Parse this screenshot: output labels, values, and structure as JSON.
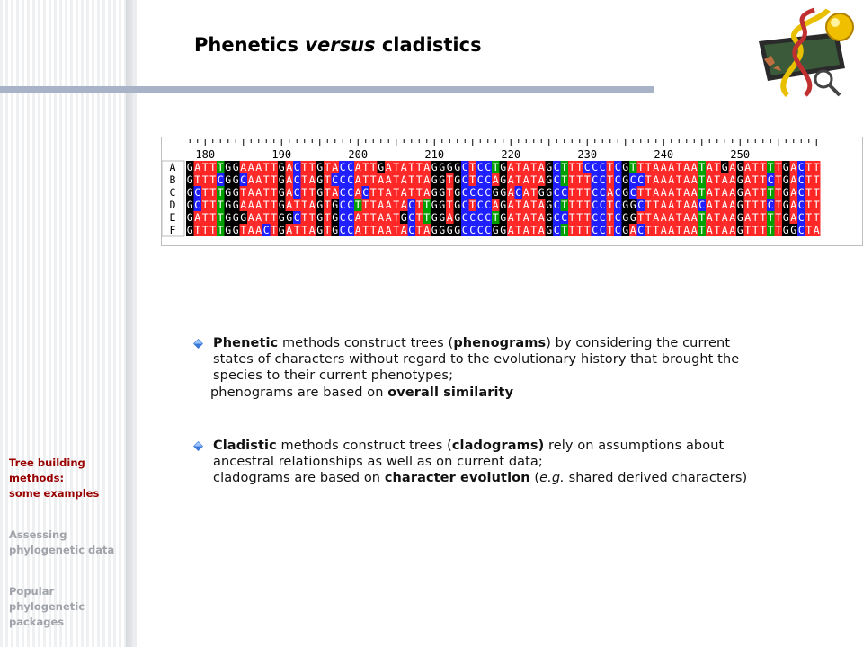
{
  "title": {
    "part1": "Phenetics ",
    "part2": "versus",
    "part3": " cladistics"
  },
  "sidebar_nav": [
    {
      "lines": [
        "Tree building",
        "methods:",
        "some examples"
      ],
      "active": true
    },
    {
      "lines": [
        "Assessing",
        "phylogenetic data"
      ],
      "active": false
    },
    {
      "lines": [
        "Popular",
        "phylogenetic",
        "packages"
      ],
      "active": false
    }
  ],
  "alignment": {
    "ruler_ticks": [
      "180",
      "190",
      "200",
      "210",
      "220",
      "230",
      "240",
      "250"
    ],
    "rows": [
      {
        "label": "A",
        "seq": "GATTTGGAAATTGACTTGTACCATTGATATTAGGGGCTCCTGATATAGCTTTCCCTCGTTTAAATAATATGAGATTTTGACTT"
      },
      {
        "label": "B",
        "seq": "GTTTCGGCAATTGACTAGTCCCATTAATATTAGGTGCTCCAGATATAGCTTTTCCTCGCCTAAATAATATAAGATTCTGACTT"
      },
      {
        "label": "C",
        "seq": "GCTTTGGTAATTGACTTGTACCACTTATATTAGGTGCCCCGGACATGGCCTTTCCACGCTTAAATAATATAAGATTTTGACTT"
      },
      {
        "label": "D",
        "seq": "GCTTTGGAAATTGATTAGTGCCTTTAATACTTGGTGCTCCAGATATAGCTTTTCCTCGGCTTAATAACATAAGTTTCTGACTT"
      },
      {
        "label": "E",
        "seq": "GATTTGGGAATTGGCTTGTGCCATTAATGCTTGGAGCCCCTGATATAGCCTTTCCTCGGTTAAATAATATAAGATTTTGACTT"
      },
      {
        "label": "F",
        "seq": "GTTTTGGTAACTGATTAGTGCCATTAATACTAGGGGCCCCGGATATAGCTTTTCCTCGACTTAATAATATAAGTTTTTGGCTA"
      }
    ],
    "colors": {
      "A": "#ff2020",
      "C": "#1a1aff",
      "G": "#000000",
      "T": "#ff1a1a",
      "T_alt": "#00a000"
    }
  },
  "bullets": [
    {
      "lines": [
        [
          {
            "t": "Phenetic",
            "b": true
          },
          {
            "t": " methods construct trees ("
          },
          {
            "t": "phenograms",
            "b": true
          },
          {
            "t": ") by considering the current"
          }
        ],
        [
          {
            "t": "states of characters without regard to the evolutionary history that brought the"
          }
        ],
        [
          {
            "t": "species to their current phenotypes;"
          }
        ],
        [
          {
            "t": "phenograms are based on "
          },
          {
            "t": "overall similarity",
            "b": true
          }
        ]
      ]
    },
    {
      "lines": [
        [
          {
            "t": "Cladistic",
            "b": true
          },
          {
            "t": " methods construct trees ("
          },
          {
            "t": "cladograms)",
            "b": true
          },
          {
            "t": " rely on assumptions about"
          }
        ],
        [
          {
            "t": "ancestral relationships as well as on current data;"
          }
        ],
        [
          {
            "t": "cladograms are based on "
          },
          {
            "t": "character evolution",
            "b": true
          },
          {
            "t": " ("
          },
          {
            "t": "e.g.",
            "i": true
          },
          {
            "t": " shared derived characters)"
          }
        ]
      ]
    }
  ]
}
